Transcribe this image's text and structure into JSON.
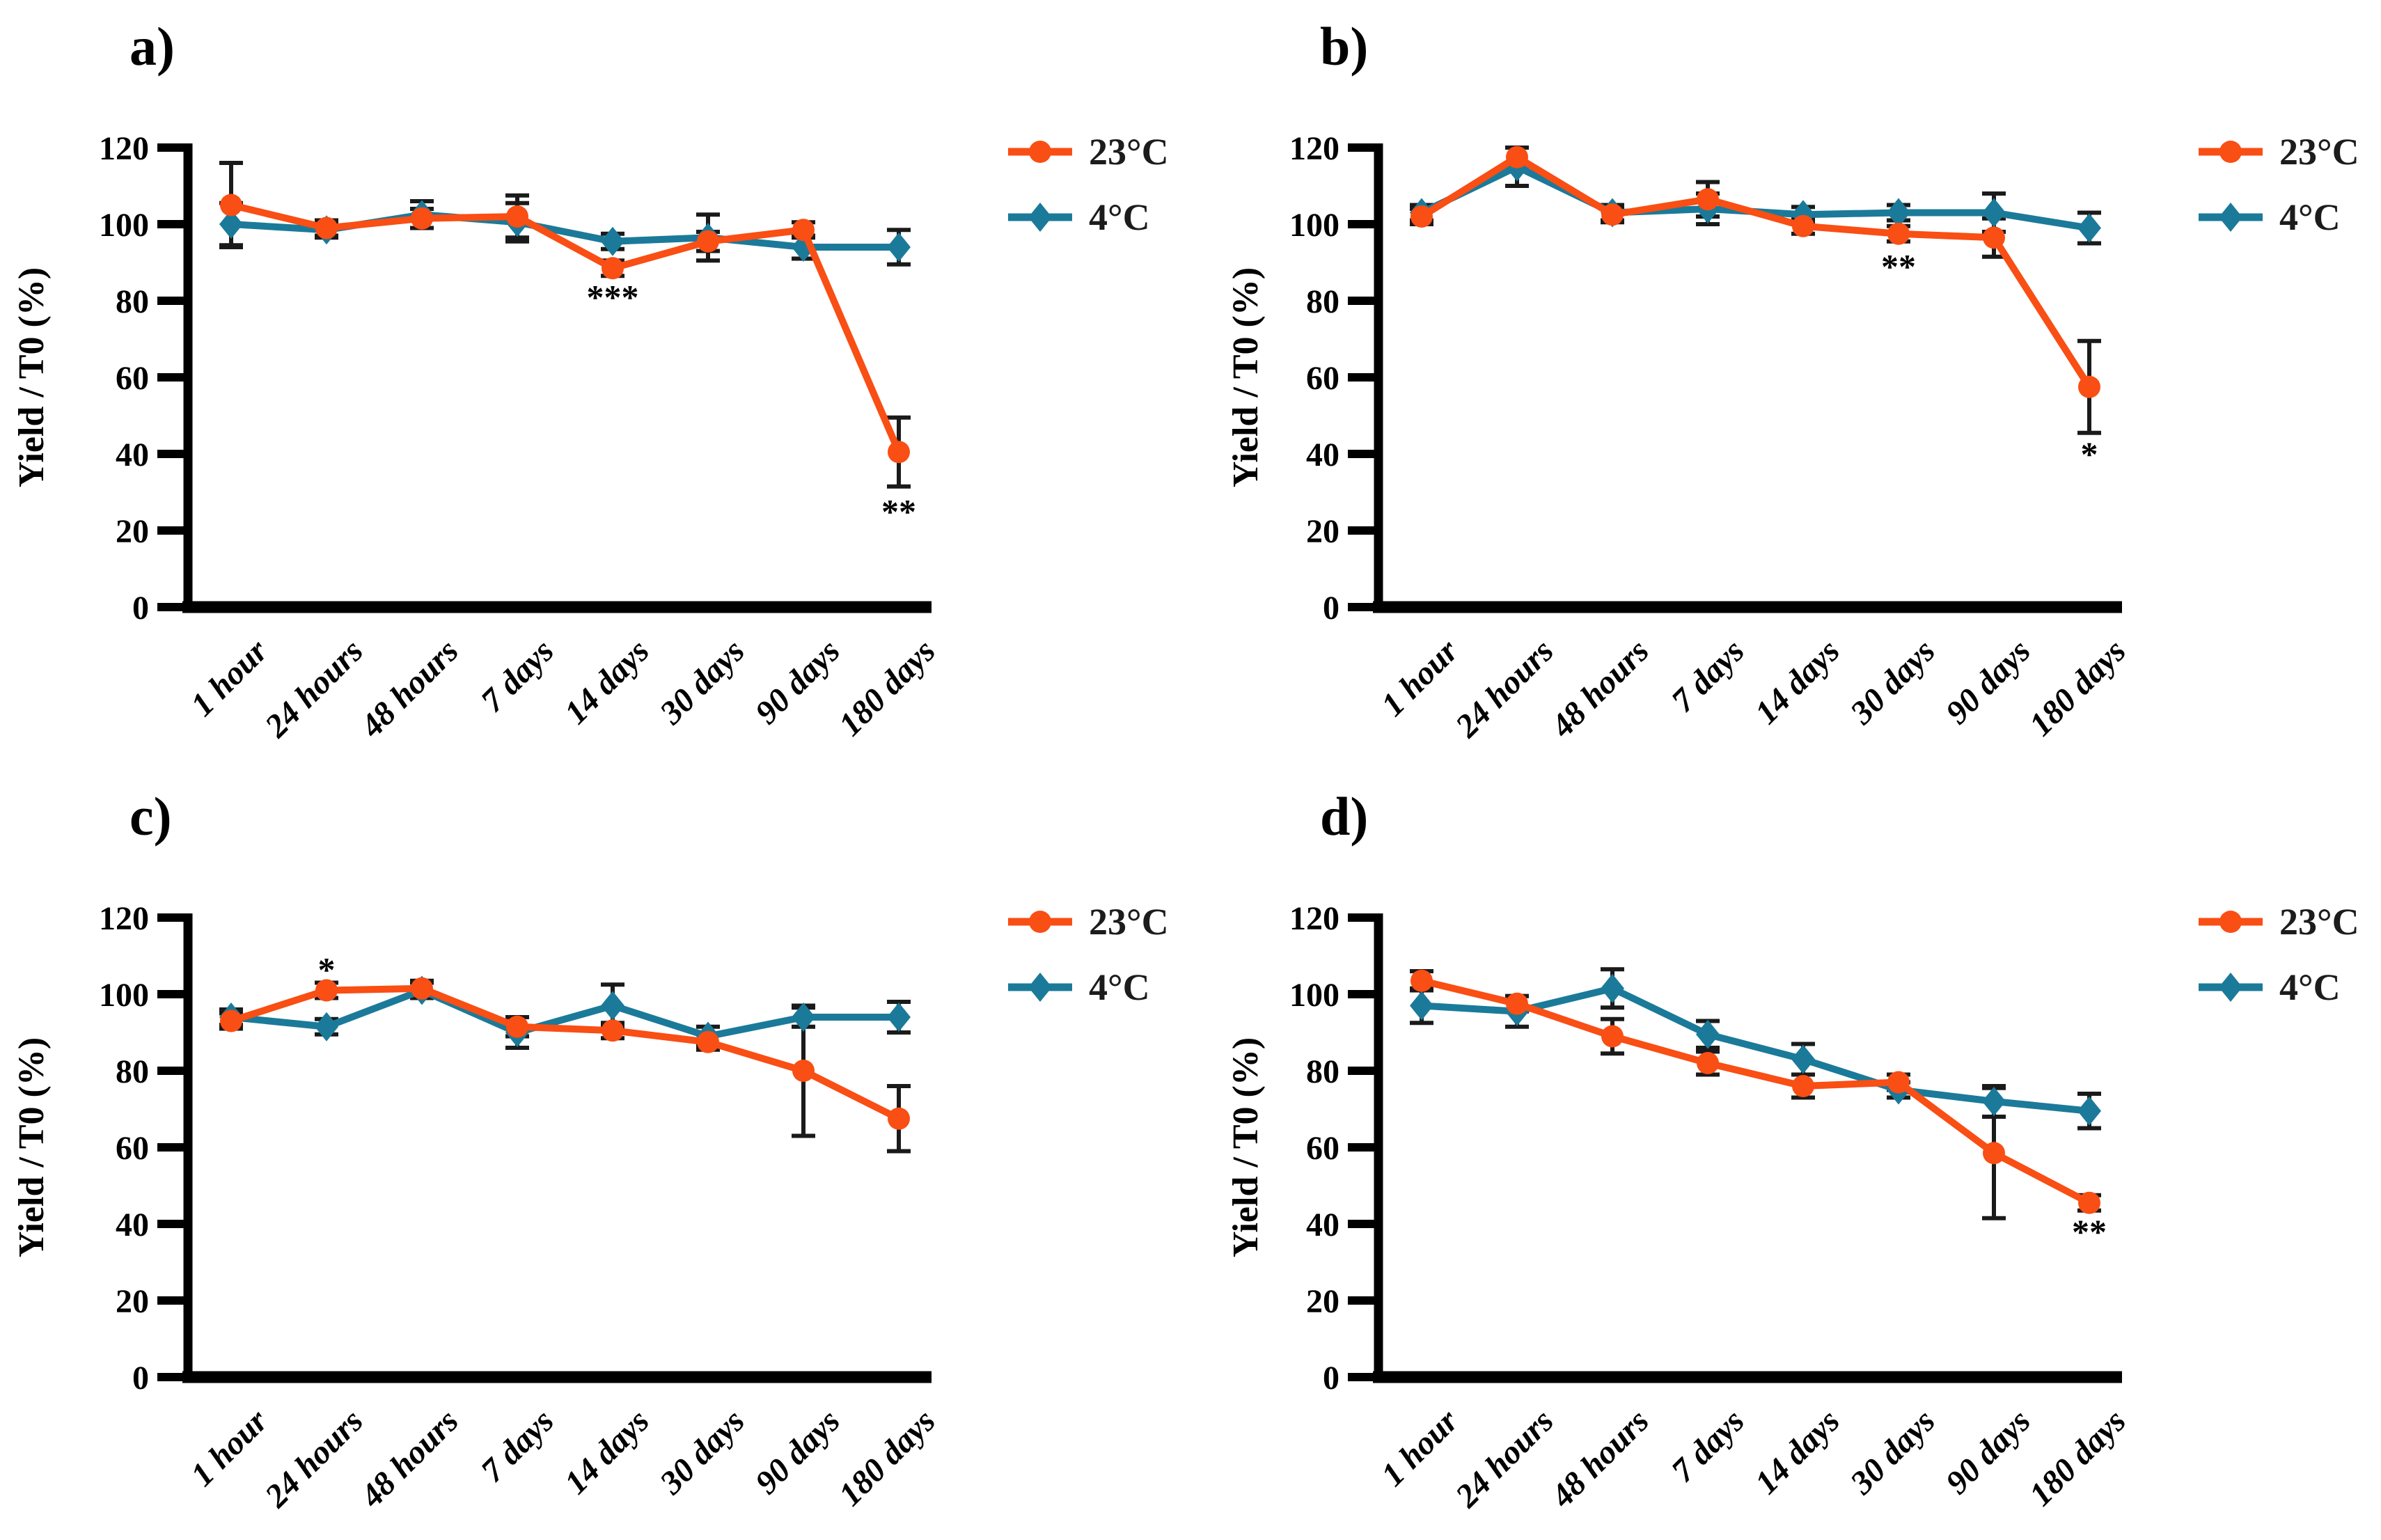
{
  "figure": {
    "y_axis_label": "Yield / T0 (%)",
    "categories": [
      "1 hour",
      "24 hours",
      "48 hours",
      "7 days",
      "14 days",
      "30 days",
      "90 days",
      "180 days"
    ],
    "y_ticks": [
      0,
      20,
      40,
      60,
      80,
      100,
      120
    ],
    "legend": [
      {
        "label": "23°C",
        "color": "#F94E14",
        "marker": "circle"
      },
      {
        "label": "4°C",
        "color": "#1B7A99",
        "marker": "diamond"
      }
    ],
    "colors": {
      "series_23c": "#F94E14",
      "series_4c": "#1B7A99",
      "error_bar": "#1a1a1a",
      "axis": "#000000",
      "significance": "#2F89A8"
    }
  },
  "chart_data": [
    {
      "panel": "a)",
      "type": "line",
      "title": "",
      "xlabel": "",
      "ylabel": "Yield / T0 (%)",
      "ylim": [
        0,
        120
      ],
      "grid": false,
      "legend_position": "right",
      "y_ticks": [
        0,
        20,
        40,
        60,
        80,
        100,
        120
      ],
      "categories": [
        "1 hour",
        "24 hours",
        "48 hours",
        "7 days",
        "14 days",
        "30 days",
        "90 days",
        "180 days"
      ],
      "series": [
        {
          "name": "23°C",
          "color": "#F94E14",
          "marker": "circle",
          "values": [
            105,
            99,
            101.5,
            102,
            88.5,
            95.5,
            98.5,
            40.5
          ],
          "errors": [
            11,
            2,
            2.5,
            5.5,
            2,
            2.5,
            2,
            9
          ]
        },
        {
          "name": "4°C",
          "color": "#1B7A99",
          "marker": "diamond",
          "values": [
            100,
            98.5,
            102.5,
            100.5,
            95.5,
            96.5,
            94,
            94
          ],
          "errors": [
            5.5,
            2,
            3.5,
            5,
            2,
            6,
            3,
            4.5
          ]
        }
      ],
      "annotations": [
        {
          "category": "14 days",
          "y": 81,
          "text": "***",
          "color": "#2F89A8"
        },
        {
          "category": "180 days",
          "y": 25,
          "text": "**",
          "color": "#2F89A8"
        }
      ]
    },
    {
      "panel": "b)",
      "type": "line",
      "title": "",
      "xlabel": "",
      "ylabel": "Yield / T0 (%)",
      "ylim": [
        0,
        120
      ],
      "grid": false,
      "legend_position": "right",
      "y_ticks": [
        0,
        20,
        40,
        60,
        80,
        100,
        120
      ],
      "categories": [
        "1 hour",
        "24 hours",
        "48 hours",
        "7 days",
        "14 days",
        "30 days",
        "90 days",
        "180 days"
      ],
      "series": [
        {
          "name": "23°C",
          "color": "#F94E14",
          "marker": "circle",
          "values": [
            102,
            117.5,
            102.5,
            106.5,
            99.5,
            97.5,
            96.5,
            57.5
          ],
          "errors": [
            2,
            2.5,
            2,
            4.5,
            2,
            2,
            5,
            12
          ]
        },
        {
          "name": "4°C",
          "color": "#1B7A99",
          "marker": "diamond",
          "values": [
            103,
            115,
            103,
            104,
            102.5,
            103,
            103,
            99
          ],
          "errors": [
            2,
            5,
            2,
            4,
            2,
            2,
            5,
            4
          ]
        }
      ],
      "annotations": [
        {
          "category": "30 days",
          "y": 89,
          "text": "**",
          "color": "#2F89A8"
        },
        {
          "category": "180 days",
          "y": 40,
          "text": "*",
          "color": "#2F89A8"
        }
      ]
    },
    {
      "panel": "c)",
      "type": "line",
      "title": "",
      "xlabel": "",
      "ylabel": "Yield / T0 (%)",
      "ylim": [
        0,
        120
      ],
      "grid": false,
      "legend_position": "right",
      "y_ticks": [
        0,
        20,
        40,
        60,
        80,
        100,
        120
      ],
      "categories": [
        "1 hour",
        "24 hours",
        "48 hours",
        "7 days",
        "14 days",
        "30 days",
        "90 days",
        "180 days"
      ],
      "series": [
        {
          "name": "23°C",
          "color": "#F94E14",
          "marker": "circle",
          "values": [
            93,
            101,
            101.5,
            91.5,
            90.5,
            87.5,
            80,
            67.5
          ],
          "errors": [
            2,
            2,
            2,
            2.5,
            2,
            2,
            17,
            8.5
          ]
        },
        {
          "name": "4°C",
          "color": "#1B7A99",
          "marker": "diamond",
          "values": [
            94,
            91.5,
            101,
            90,
            97,
            89,
            94,
            94
          ],
          "errors": [
            2,
            2,
            2,
            4,
            5.5,
            2.5,
            2.5,
            4
          ]
        }
      ],
      "annotations": [
        {
          "category": "24 hours",
          "y": 106.5,
          "text": "*",
          "color": "#2F89A8"
        }
      ]
    },
    {
      "panel": "d)",
      "type": "line",
      "title": "",
      "xlabel": "",
      "ylabel": "Yield / T0 (%)",
      "ylim": [
        0,
        120
      ],
      "grid": false,
      "legend_position": "right",
      "y_ticks": [
        0,
        20,
        40,
        60,
        80,
        100,
        120
      ],
      "categories": [
        "1 hour",
        "24 hours",
        "48 hours",
        "7 days",
        "14 days",
        "30 days",
        "90 days",
        "180 days"
      ],
      "series": [
        {
          "name": "23°C",
          "color": "#F94E14",
          "marker": "circle",
          "values": [
            103.5,
            97.5,
            89,
            82,
            76,
            77,
            58.5,
            45.5
          ],
          "errors": [
            2.5,
            2,
            4.5,
            3,
            3,
            2,
            17,
            2
          ]
        },
        {
          "name": "4°C",
          "color": "#1B7A99",
          "marker": "diamond",
          "values": [
            97,
            95.5,
            101.5,
            89.5,
            83,
            75,
            72,
            69.5
          ],
          "errors": [
            4.5,
            4,
            5,
            3.5,
            4,
            2,
            4,
            4.5
          ]
        }
      ],
      "annotations": [
        {
          "category": "180 days",
          "y": 38,
          "text": "**",
          "color": "#2F89A8"
        }
      ]
    }
  ]
}
